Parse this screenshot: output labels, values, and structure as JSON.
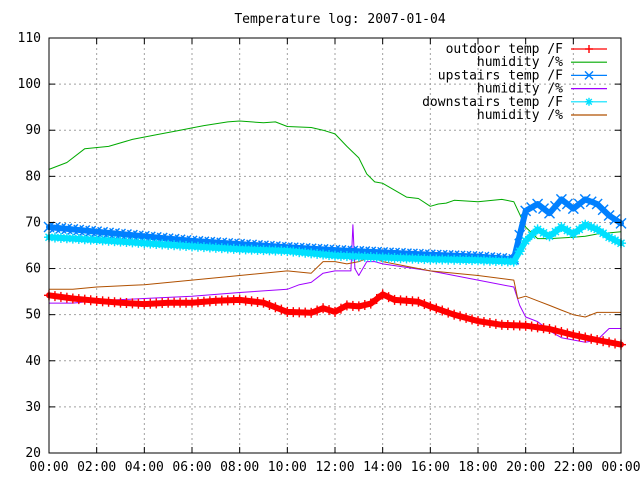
{
  "chart_data": {
    "type": "line",
    "title": "Temperature log: 2007-01-04",
    "xlabel": "",
    "ylabel": "",
    "xlim": [
      "00:00",
      "24:00"
    ],
    "ylim": [
      20,
      110
    ],
    "grid": true,
    "legend_position": "top-right",
    "x_ticks": [
      "00:00",
      "02:00",
      "04:00",
      "06:00",
      "08:00",
      "10:00",
      "12:00",
      "14:00",
      "16:00",
      "18:00",
      "20:00",
      "22:00",
      "00:00"
    ],
    "y_ticks": [
      "20",
      "30",
      "40",
      "50",
      "60",
      "70",
      "80",
      "90",
      "100",
      "110"
    ],
    "series": [
      {
        "name": "outdoor temp /F",
        "color": "#ff0000",
        "marker": "plus",
        "x": [
          "00:00",
          "01:00",
          "02:00",
          "03:00",
          "04:00",
          "05:00",
          "06:00",
          "07:00",
          "08:00",
          "09:00",
          "10:00",
          "11:00",
          "11:30",
          "12:00",
          "12:30",
          "13:00",
          "13:30",
          "14:00",
          "14:30",
          "15:00",
          "15:30",
          "16:00",
          "17:00",
          "18:00",
          "19:00",
          "20:00",
          "21:00",
          "22:00",
          "23:00",
          "24:00"
        ],
        "values": [
          54.2,
          53.5,
          53.0,
          52.6,
          52.3,
          52.6,
          52.6,
          53.0,
          53.2,
          52.6,
          50.6,
          50.4,
          51.4,
          50.6,
          52.0,
          51.8,
          52.4,
          54.4,
          53.2,
          53.0,
          52.8,
          51.8,
          50.0,
          48.6,
          47.8,
          47.6,
          46.9,
          45.6,
          44.5,
          43.5
        ]
      },
      {
        "name": "humidity /%",
        "color": "#00aa00",
        "marker": "none",
        "x": [
          "00:00",
          "00:45",
          "01:30",
          "02:30",
          "03:30",
          "04:30",
          "05:30",
          "06:30",
          "07:30",
          "08:00",
          "09:00",
          "09:30",
          "10:00",
          "11:00",
          "11:30",
          "12:00",
          "12:30",
          "13:00",
          "13:20",
          "13:40",
          "14:00",
          "14:30",
          "15:00",
          "15:30",
          "16:00",
          "16:20",
          "16:40",
          "17:00",
          "18:00",
          "19:00",
          "19:30",
          "20:00",
          "20:30",
          "21:00",
          "22:00",
          "22:30",
          "23:00",
          "24:00"
        ],
        "values": [
          81.5,
          83.0,
          86.0,
          86.5,
          88.0,
          89.0,
          90.0,
          91.0,
          91.8,
          92.0,
          91.6,
          91.8,
          90.8,
          90.6,
          90.0,
          89.2,
          86.5,
          84.0,
          80.5,
          78.8,
          78.5,
          77.0,
          75.5,
          75.2,
          73.5,
          74.0,
          74.2,
          74.8,
          74.5,
          75.0,
          74.5,
          69.0,
          66.5,
          66.5,
          66.8,
          67.0,
          67.5,
          68.0
        ]
      },
      {
        "name": "upstairs temp /F",
        "color": "#0080ff",
        "marker": "x",
        "x": [
          "00:00",
          "02:00",
          "04:00",
          "06:00",
          "08:00",
          "10:00",
          "12:00",
          "14:00",
          "16:00",
          "18:00",
          "19:30",
          "20:00",
          "20:30",
          "21:00",
          "21:30",
          "22:00",
          "22:30",
          "23:00",
          "23:30",
          "24:00"
        ],
        "values": [
          69.0,
          68.0,
          67.0,
          66.0,
          65.3,
          64.6,
          64.0,
          63.5,
          63.0,
          62.6,
          62.0,
          72.5,
          74.0,
          72.0,
          75.0,
          73.0,
          75.0,
          74.0,
          71.5,
          69.8
        ]
      },
      {
        "name": "humidity /%",
        "color": "#a000ff",
        "marker": "none",
        "x": [
          "00:00",
          "01:00",
          "02:00",
          "04:00",
          "06:00",
          "08:00",
          "10:00",
          "10:30",
          "11:00",
          "11:30",
          "12:00",
          "12:40",
          "12:45",
          "12:50",
          "13:00",
          "13:20",
          "13:40",
          "14:00",
          "16:00",
          "18:00",
          "19:30",
          "19:45",
          "20:00",
          "20:30",
          "21:00",
          "21:30",
          "22:00",
          "22:30",
          "23:00",
          "23:30",
          "24:00"
        ],
        "values": [
          52.5,
          52.5,
          53.0,
          53.5,
          54.0,
          54.8,
          55.5,
          56.5,
          57.0,
          59.0,
          59.5,
          59.5,
          69.5,
          60.0,
          58.5,
          61.5,
          61.5,
          61.0,
          59.5,
          57.5,
          56.0,
          52.0,
          49.5,
          48.5,
          46.5,
          45.0,
          44.5,
          44.0,
          44.5,
          47.0,
          47.0
        ]
      },
      {
        "name": "downstairs temp /F",
        "color": "#00e0ff",
        "marker": "star",
        "x": [
          "00:00",
          "02:00",
          "04:00",
          "06:00",
          "08:00",
          "10:00",
          "12:00",
          "14:00",
          "16:00",
          "18:00",
          "19:30",
          "20:00",
          "20:30",
          "21:00",
          "21:30",
          "22:00",
          "22:30",
          "23:00",
          "23:30",
          "24:00"
        ],
        "values": [
          66.8,
          66.2,
          65.5,
          64.8,
          64.2,
          63.8,
          62.8,
          62.4,
          62.0,
          61.8,
          61.5,
          66.0,
          68.5,
          67.0,
          69.0,
          67.5,
          69.5,
          68.5,
          66.8,
          65.5
        ]
      },
      {
        "name": "humidity /%",
        "color": "#b05000",
        "marker": "none",
        "x": [
          "00:00",
          "01:00",
          "02:00",
          "04:00",
          "06:00",
          "08:00",
          "10:00",
          "11:00",
          "11:30",
          "12:00",
          "12:30",
          "13:00",
          "13:30",
          "14:00",
          "15:00",
          "16:00",
          "18:00",
          "19:30",
          "19:40",
          "20:00",
          "20:30",
          "21:00",
          "21:30",
          "22:00",
          "22:30",
          "23:00",
          "24:00"
        ],
        "values": [
          55.5,
          55.5,
          56.0,
          56.5,
          57.5,
          58.5,
          59.5,
          59.0,
          61.5,
          61.5,
          61.0,
          61.5,
          62.5,
          61.5,
          60.5,
          59.5,
          58.5,
          57.5,
          53.5,
          54.0,
          53.0,
          52.0,
          51.0,
          50.0,
          49.5,
          50.5,
          50.5
        ]
      }
    ]
  }
}
